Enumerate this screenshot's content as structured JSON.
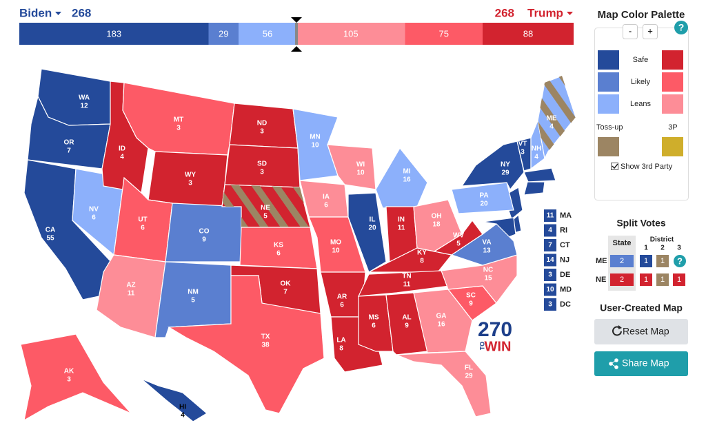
{
  "header": {
    "biden": {
      "name": "Biden",
      "total": 268
    },
    "trump": {
      "name": "Trump",
      "total": 268
    },
    "bar": [
      {
        "value": 183,
        "color": "#244a9a"
      },
      {
        "value": 29,
        "color": "#5a7fd0"
      },
      {
        "value": 56,
        "color": "#8cb0fb"
      },
      {
        "value": 105,
        "color": "#fd8d97"
      },
      {
        "value": 75,
        "color": "#fd5a66"
      },
      {
        "value": 88,
        "color": "#d2232f"
      }
    ]
  },
  "palette": {
    "title": "Map Color Palette",
    "minus": "-",
    "plus": "+",
    "help": "?",
    "rows": [
      {
        "label": "Safe",
        "dem": "#244a9a",
        "rep": "#d2232f"
      },
      {
        "label": "Likely",
        "dem": "#5a7fd0",
        "rep": "#fd5a66"
      },
      {
        "label": "Leans",
        "dem": "#8cb0fb",
        "rep": "#fd8d97"
      }
    ],
    "tossup": {
      "label": "Toss-up",
      "color": "#9c8563"
    },
    "third": {
      "label": "3P",
      "color": "#cfae2b"
    },
    "show_third": "Show 3rd Party"
  },
  "split": {
    "title": "Split Votes",
    "state_header": "State",
    "district_header": "District",
    "districts": [
      "1",
      "2",
      "3"
    ],
    "help": "?",
    "rows": [
      {
        "state": "ME",
        "cells": [
          {
            "value": 2,
            "color": "#5a7fd0"
          },
          {
            "value": 1,
            "color": "#244a9a"
          },
          {
            "value": 1,
            "color": "#9c8563"
          }
        ]
      },
      {
        "state": "NE",
        "cells": [
          {
            "value": 2,
            "color": "#d2232f"
          },
          {
            "value": 1,
            "color": "#d2232f"
          },
          {
            "value": 1,
            "color": "#9c8563"
          },
          {
            "value": 1,
            "color": "#d2232f"
          }
        ]
      }
    ]
  },
  "user_map": {
    "title": "User-Created Map",
    "reset": "Reset Map",
    "share": "Share Map"
  },
  "logo": {
    "number": "270",
    "to": "TO",
    "win": "WIN"
  },
  "states": [
    {
      "abbr": "WA",
      "ev": 12,
      "color": "#244a9a"
    },
    {
      "abbr": "OR",
      "ev": 7,
      "color": "#244a9a"
    },
    {
      "abbr": "CA",
      "ev": 55,
      "color": "#244a9a"
    },
    {
      "abbr": "NV",
      "ev": 6,
      "color": "#8cb0fb"
    },
    {
      "abbr": "ID",
      "ev": 4,
      "color": "#d2232f"
    },
    {
      "abbr": "MT",
      "ev": 3,
      "color": "#fd5a66"
    },
    {
      "abbr": "WY",
      "ev": 3,
      "color": "#d2232f"
    },
    {
      "abbr": "UT",
      "ev": 6,
      "color": "#fd5a66"
    },
    {
      "abbr": "CO",
      "ev": 9,
      "color": "#5a7fd0"
    },
    {
      "abbr": "AZ",
      "ev": 11,
      "color": "#fd8d97"
    },
    {
      "abbr": "NM",
      "ev": 5,
      "color": "#5a7fd0"
    },
    {
      "abbr": "ND",
      "ev": 3,
      "color": "#d2232f"
    },
    {
      "abbr": "SD",
      "ev": 3,
      "color": "#d2232f"
    },
    {
      "abbr": "NE",
      "ev": 5,
      "color": "#d2232f",
      "split_color": "#9c8563"
    },
    {
      "abbr": "KS",
      "ev": 6,
      "color": "#fd5a66"
    },
    {
      "abbr": "OK",
      "ev": 7,
      "color": "#d2232f"
    },
    {
      "abbr": "TX",
      "ev": 38,
      "color": "#fd5a66"
    },
    {
      "abbr": "MN",
      "ev": 10,
      "color": "#8cb0fb"
    },
    {
      "abbr": "IA",
      "ev": 6,
      "color": "#fd8d97"
    },
    {
      "abbr": "MO",
      "ev": 10,
      "color": "#fd5a66"
    },
    {
      "abbr": "AR",
      "ev": 6,
      "color": "#d2232f"
    },
    {
      "abbr": "LA",
      "ev": 8,
      "color": "#d2232f"
    },
    {
      "abbr": "WI",
      "ev": 10,
      "color": "#fd8d97"
    },
    {
      "abbr": "IL",
      "ev": 20,
      "color": "#244a9a"
    },
    {
      "abbr": "MI",
      "ev": 16,
      "color": "#8cb0fb"
    },
    {
      "abbr": "IN",
      "ev": 11,
      "color": "#d2232f"
    },
    {
      "abbr": "OH",
      "ev": 18,
      "color": "#fd8d97"
    },
    {
      "abbr": "KY",
      "ev": 8,
      "color": "#d2232f"
    },
    {
      "abbr": "TN",
      "ev": 11,
      "color": "#d2232f"
    },
    {
      "abbr": "MS",
      "ev": 6,
      "color": "#d2232f"
    },
    {
      "abbr": "AL",
      "ev": 9,
      "color": "#d2232f"
    },
    {
      "abbr": "GA",
      "ev": 16,
      "color": "#fd8d97"
    },
    {
      "abbr": "FL",
      "ev": 29,
      "color": "#fd8d97"
    },
    {
      "abbr": "SC",
      "ev": 9,
      "color": "#fd5a66"
    },
    {
      "abbr": "NC",
      "ev": 15,
      "color": "#fd8d97"
    },
    {
      "abbr": "VA",
      "ev": 13,
      "color": "#5a7fd0"
    },
    {
      "abbr": "WV",
      "ev": 5,
      "color": "#d2232f"
    },
    {
      "abbr": "PA",
      "ev": 20,
      "color": "#8cb0fb"
    },
    {
      "abbr": "NY",
      "ev": 29,
      "color": "#244a9a"
    },
    {
      "abbr": "VT",
      "ev": 3,
      "color": "#244a9a"
    },
    {
      "abbr": "NH",
      "ev": 4,
      "color": "#8cb0fb"
    },
    {
      "abbr": "ME",
      "ev": 4,
      "color": "#8cb0fb",
      "split_color": "#9c8563"
    },
    {
      "abbr": "AK",
      "ev": 3,
      "color": "#fd5a66"
    },
    {
      "abbr": "HI",
      "ev": 4,
      "color": "#244a9a"
    }
  ],
  "small_states": [
    {
      "abbr": "MA",
      "ev": 11,
      "color": "#244a9a"
    },
    {
      "abbr": "RI",
      "ev": 4,
      "color": "#244a9a"
    },
    {
      "abbr": "CT",
      "ev": 7,
      "color": "#244a9a"
    },
    {
      "abbr": "NJ",
      "ev": 14,
      "color": "#244a9a"
    },
    {
      "abbr": "DE",
      "ev": 3,
      "color": "#244a9a"
    },
    {
      "abbr": "MD",
      "ev": 10,
      "color": "#244a9a"
    },
    {
      "abbr": "DC",
      "ev": 3,
      "color": "#244a9a"
    }
  ]
}
